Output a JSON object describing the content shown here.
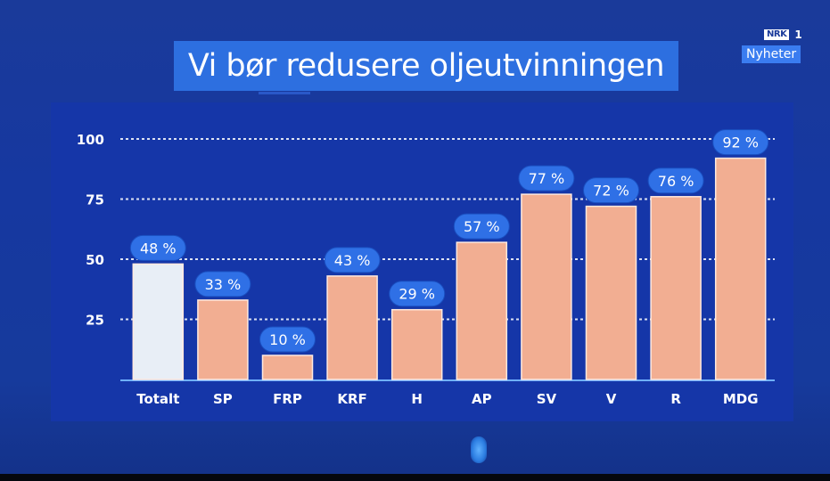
{
  "broadcast": {
    "channel_logo": "NRK",
    "channel_number": "1",
    "channel_badge": "Nyheter"
  },
  "chart_data": {
    "type": "bar",
    "title": "Vi bør redusere oljeutvinningen",
    "xlabel": "",
    "ylabel": "",
    "ylim": [
      0,
      100
    ],
    "yticks": [
      25,
      50,
      75,
      100
    ],
    "grid": true,
    "categories": [
      "Totalt",
      "SP",
      "FRP",
      "KRF",
      "H",
      "AP",
      "SV",
      "V",
      "R",
      "MDG"
    ],
    "values": [
      48,
      33,
      10,
      43,
      29,
      57,
      77,
      72,
      76,
      92
    ],
    "data_labels": [
      "48 %",
      "33 %",
      "10 %",
      "43 %",
      "29 %",
      "57 %",
      "77 %",
      "72 %",
      "76 %",
      "92 %"
    ],
    "colors": {
      "total_bar": "#e8eef6",
      "party_bar": "#f2ae92",
      "label_pill": "#2f70e6",
      "grid": "#ffffff",
      "axis": "#6fb0ff"
    }
  }
}
